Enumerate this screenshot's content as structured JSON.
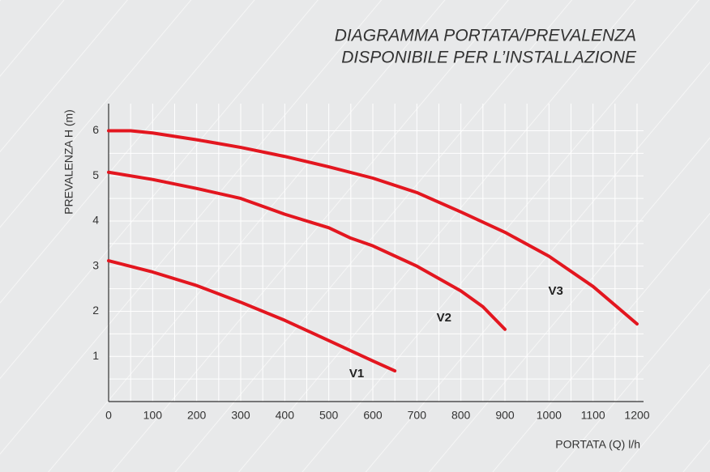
{
  "chart_data": {
    "type": "line",
    "title": [
      "DIAGRAMMA PORTATA/PREVALENZA",
      "DISPONIBILE PER L’INSTALLAZIONE"
    ],
    "x_label": "PORTATA (Q)  l/h",
    "y_label": "PREVALENZA H (m)",
    "xlim": [
      0,
      1200
    ],
    "ylim": [
      0,
      6.6
    ],
    "xticks": [
      0,
      100,
      200,
      300,
      400,
      500,
      600,
      700,
      800,
      900,
      1000,
      1100,
      1200
    ],
    "yticks": [
      1,
      2,
      3,
      4,
      5,
      6
    ],
    "grid": true,
    "series": [
      {
        "name": "V1",
        "color": "#e3161f",
        "x": [
          0,
          100,
          200,
          300,
          400,
          500,
          600,
          650
        ],
        "values": [
          3.12,
          2.87,
          2.57,
          2.2,
          1.8,
          1.35,
          0.9,
          0.68
        ]
      },
      {
        "name": "V2",
        "color": "#e3161f",
        "x": [
          0,
          100,
          200,
          300,
          400,
          500,
          550,
          600,
          700,
          800,
          850,
          900
        ],
        "values": [
          5.08,
          4.92,
          4.72,
          4.5,
          4.15,
          3.85,
          3.62,
          3.45,
          3.0,
          2.45,
          2.1,
          1.6
        ]
      },
      {
        "name": "V3",
        "color": "#e3161f",
        "x": [
          0,
          50,
          100,
          200,
          300,
          400,
          500,
          600,
          700,
          800,
          900,
          1000,
          1100,
          1200
        ],
        "values": [
          6.0,
          6.0,
          5.95,
          5.8,
          5.63,
          5.43,
          5.2,
          4.95,
          4.63,
          4.2,
          3.75,
          3.22,
          2.55,
          1.72
        ]
      }
    ]
  }
}
